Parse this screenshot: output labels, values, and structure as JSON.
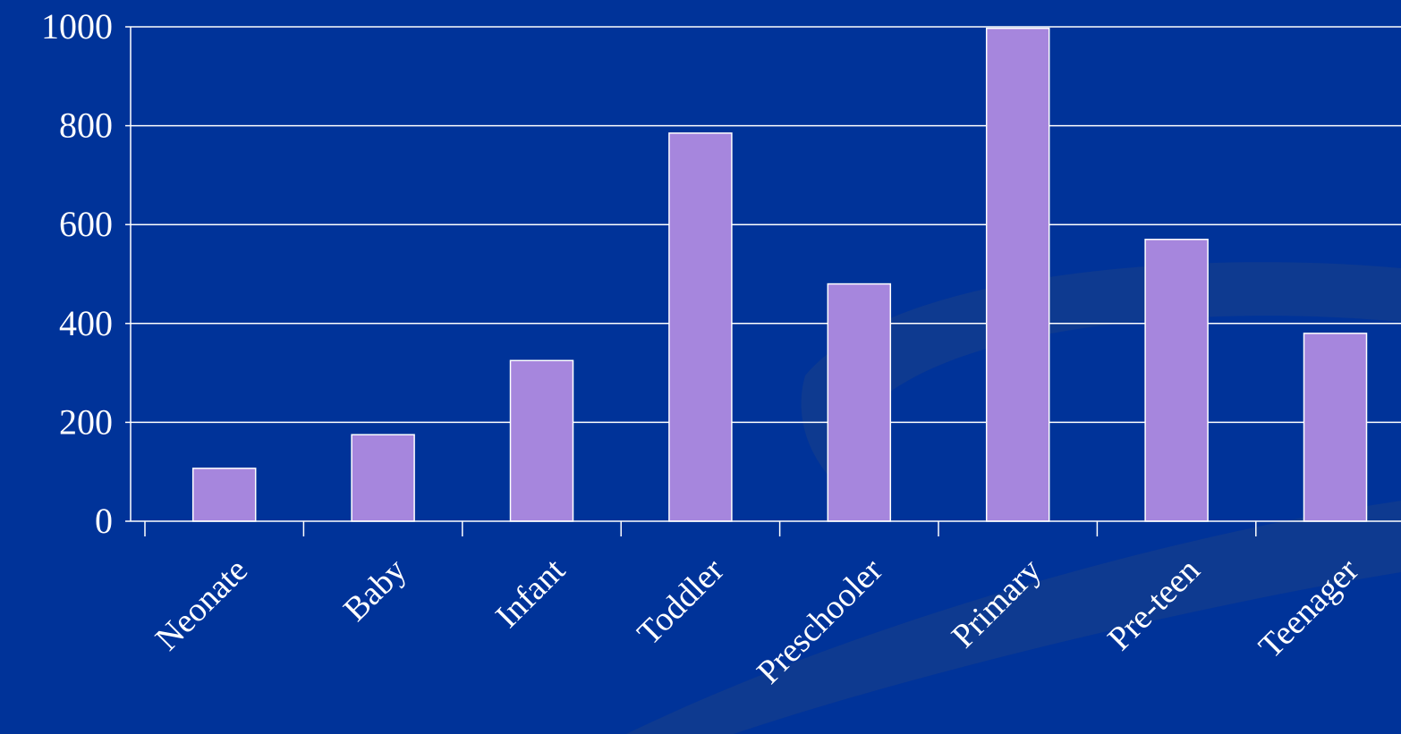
{
  "colors": {
    "background": "#003399",
    "background_swoosh": "#0f3b8f",
    "bar_fill": "#a686dd",
    "bar_stroke": "#ffffff",
    "gridline": "#ffffff",
    "axis": "#ffffff",
    "text": "#ffffff"
  },
  "chart_data": {
    "type": "bar",
    "categories": [
      "Neonate",
      "Baby",
      "Infant",
      "Toddler",
      "Preschooler",
      "Primary",
      "Pre-teen",
      "Teenager"
    ],
    "values": [
      107,
      175,
      325,
      785,
      480,
      997,
      570,
      380
    ],
    "yticks": [
      "0",
      "200",
      "400",
      "600",
      "800",
      "1000"
    ],
    "ylim": [
      0,
      1000
    ],
    "grid": true,
    "legend": "none"
  }
}
